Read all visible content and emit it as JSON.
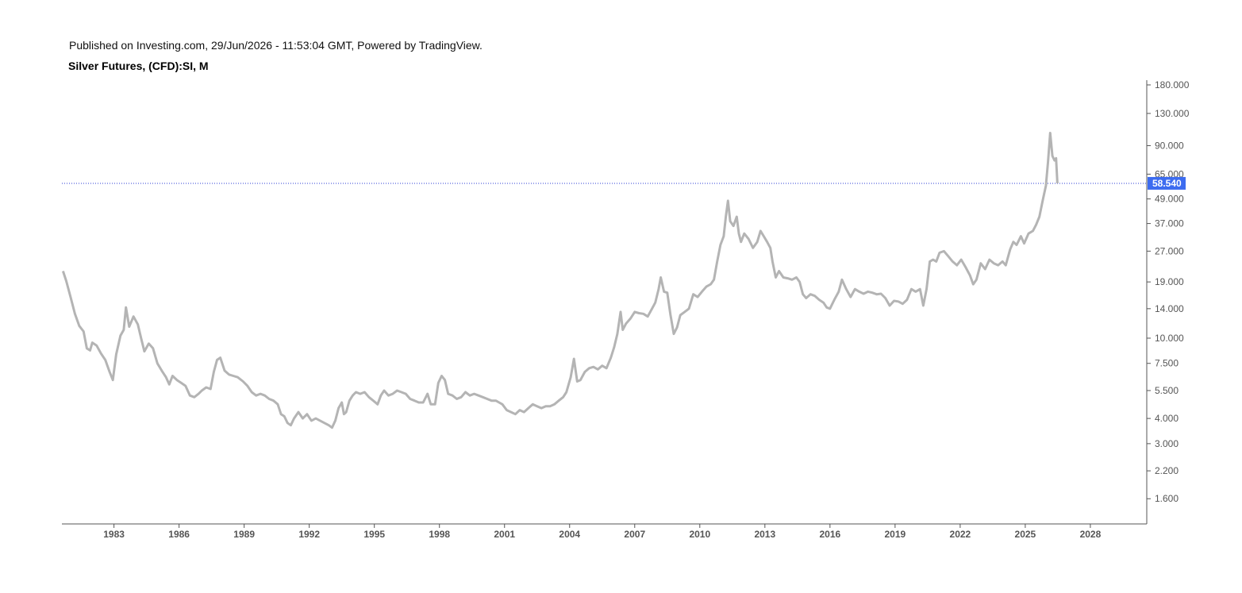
{
  "header": {
    "published": "Published on Investing.com, 29/Jun/2026 - 11:53:04 GMT, Powered by TradingView.",
    "title": "Silver Futures, (CFD):SI, M"
  },
  "colors": {
    "line": "#b4b4b4",
    "price_line": "#2a3bd6",
    "price_tag_bg": "#3d6cf0",
    "axis": "#555555"
  },
  "chart_data": {
    "type": "line",
    "title": "Silver Futures, (CFD):SI, M",
    "y_scale": "log",
    "ylim": [
      1.2,
      190
    ],
    "xlim": [
      1980.6,
      2030.6
    ],
    "y_ticks": [
      "1.600",
      "2.200",
      "3.000",
      "4.000",
      "5.500",
      "7.500",
      "10.000",
      "14.000",
      "19.000",
      "27.000",
      "37.000",
      "49.000",
      "65.000",
      "90.000",
      "130.000",
      "180.000"
    ],
    "x_ticks": [
      "1983",
      "1986",
      "1989",
      "1992",
      "1995",
      "1998",
      "2001",
      "2004",
      "2007",
      "2010",
      "2013",
      "2016",
      "2019",
      "2022",
      "2025",
      "2028"
    ],
    "last_price": 58.54,
    "last_price_label": "58.540",
    "grid": false,
    "series": [
      {
        "points": [
          [
            1980.65,
            21.5
          ],
          [
            1980.8,
            19.2
          ],
          [
            1981.0,
            16.0
          ],
          [
            1981.2,
            13.2
          ],
          [
            1981.4,
            11.5
          ],
          [
            1981.6,
            10.8
          ],
          [
            1981.75,
            8.9
          ],
          [
            1981.9,
            8.7
          ],
          [
            1982.0,
            9.5
          ],
          [
            1982.2,
            9.2
          ],
          [
            1982.4,
            8.4
          ],
          [
            1982.6,
            7.8
          ],
          [
            1982.8,
            6.8
          ],
          [
            1982.95,
            6.2
          ],
          [
            1983.1,
            8.3
          ],
          [
            1983.3,
            10.3
          ],
          [
            1983.45,
            11.0
          ],
          [
            1983.55,
            14.2
          ],
          [
            1983.7,
            11.4
          ],
          [
            1983.9,
            12.8
          ],
          [
            1984.1,
            11.7
          ],
          [
            1984.25,
            10.0
          ],
          [
            1984.4,
            8.6
          ],
          [
            1984.6,
            9.4
          ],
          [
            1984.8,
            8.9
          ],
          [
            1985.0,
            7.5
          ],
          [
            1985.2,
            6.9
          ],
          [
            1985.4,
            6.4
          ],
          [
            1985.55,
            5.9
          ],
          [
            1985.7,
            6.5
          ],
          [
            1985.9,
            6.2
          ],
          [
            1986.1,
            6.0
          ],
          [
            1986.3,
            5.8
          ],
          [
            1986.5,
            5.2
          ],
          [
            1986.7,
            5.1
          ],
          [
            1986.9,
            5.3
          ],
          [
            1987.05,
            5.5
          ],
          [
            1987.25,
            5.7
          ],
          [
            1987.45,
            5.6
          ],
          [
            1987.6,
            6.8
          ],
          [
            1987.75,
            7.8
          ],
          [
            1987.9,
            8.0
          ],
          [
            1988.1,
            6.9
          ],
          [
            1988.3,
            6.6
          ],
          [
            1988.5,
            6.5
          ],
          [
            1988.7,
            6.4
          ],
          [
            1988.95,
            6.1
          ],
          [
            1989.15,
            5.8
          ],
          [
            1989.35,
            5.4
          ],
          [
            1989.55,
            5.2
          ],
          [
            1989.75,
            5.3
          ],
          [
            1989.95,
            5.2
          ],
          [
            1990.15,
            5.0
          ],
          [
            1990.35,
            4.9
          ],
          [
            1990.55,
            4.7
          ],
          [
            1990.7,
            4.2
          ],
          [
            1990.85,
            4.1
          ],
          [
            1991.0,
            3.8
          ],
          [
            1991.15,
            3.7
          ],
          [
            1991.3,
            4.0
          ],
          [
            1991.5,
            4.3
          ],
          [
            1991.7,
            4.0
          ],
          [
            1991.9,
            4.2
          ],
          [
            1992.1,
            3.9
          ],
          [
            1992.3,
            4.0
          ],
          [
            1992.5,
            3.9
          ],
          [
            1992.7,
            3.8
          ],
          [
            1992.9,
            3.7
          ],
          [
            1993.05,
            3.6
          ],
          [
            1993.2,
            3.9
          ],
          [
            1993.35,
            4.5
          ],
          [
            1993.5,
            4.8
          ],
          [
            1993.6,
            4.2
          ],
          [
            1993.7,
            4.3
          ],
          [
            1993.85,
            4.9
          ],
          [
            1994.0,
            5.2
          ],
          [
            1994.15,
            5.4
          ],
          [
            1994.35,
            5.3
          ],
          [
            1994.55,
            5.4
          ],
          [
            1994.75,
            5.1
          ],
          [
            1994.95,
            4.9
          ],
          [
            1995.15,
            4.7
          ],
          [
            1995.3,
            5.2
          ],
          [
            1995.45,
            5.5
          ],
          [
            1995.65,
            5.2
          ],
          [
            1995.85,
            5.3
          ],
          [
            1996.05,
            5.5
          ],
          [
            1996.25,
            5.4
          ],
          [
            1996.45,
            5.3
          ],
          [
            1996.65,
            5.0
          ],
          [
            1996.85,
            4.9
          ],
          [
            1997.05,
            4.8
          ],
          [
            1997.25,
            4.8
          ],
          [
            1997.45,
            5.3
          ],
          [
            1997.6,
            4.7
          ],
          [
            1997.8,
            4.7
          ],
          [
            1997.95,
            6.0
          ],
          [
            1998.1,
            6.5
          ],
          [
            1998.25,
            6.2
          ],
          [
            1998.4,
            5.3
          ],
          [
            1998.6,
            5.2
          ],
          [
            1998.8,
            5.0
          ],
          [
            1999.0,
            5.1
          ],
          [
            1999.2,
            5.4
          ],
          [
            1999.4,
            5.2
          ],
          [
            1999.6,
            5.3
          ],
          [
            1999.8,
            5.2
          ],
          [
            2000.0,
            5.1
          ],
          [
            2000.2,
            5.0
          ],
          [
            2000.4,
            4.9
          ],
          [
            2000.6,
            4.9
          ],
          [
            2000.75,
            4.8
          ],
          [
            2000.9,
            4.7
          ],
          [
            2001.1,
            4.4
          ],
          [
            2001.3,
            4.3
          ],
          [
            2001.5,
            4.2
          ],
          [
            2001.7,
            4.4
          ],
          [
            2001.9,
            4.3
          ],
          [
            2002.1,
            4.5
          ],
          [
            2002.3,
            4.7
          ],
          [
            2002.5,
            4.6
          ],
          [
            2002.7,
            4.5
          ],
          [
            2002.9,
            4.6
          ],
          [
            2003.1,
            4.6
          ],
          [
            2003.3,
            4.7
          ],
          [
            2003.5,
            4.9
          ],
          [
            2003.7,
            5.1
          ],
          [
            2003.85,
            5.4
          ],
          [
            2004.05,
            6.4
          ],
          [
            2004.2,
            7.9
          ],
          [
            2004.35,
            6.1
          ],
          [
            2004.5,
            6.2
          ],
          [
            2004.7,
            6.8
          ],
          [
            2004.9,
            7.1
          ],
          [
            2005.1,
            7.2
          ],
          [
            2005.3,
            7.0
          ],
          [
            2005.5,
            7.3
          ],
          [
            2005.7,
            7.1
          ],
          [
            2005.9,
            8.0
          ],
          [
            2006.05,
            9.0
          ],
          [
            2006.2,
            10.5
          ],
          [
            2006.35,
            13.5
          ],
          [
            2006.45,
            11.0
          ],
          [
            2006.6,
            11.8
          ],
          [
            2006.8,
            12.5
          ],
          [
            2007.0,
            13.5
          ],
          [
            2007.2,
            13.3
          ],
          [
            2007.4,
            13.2
          ],
          [
            2007.6,
            12.8
          ],
          [
            2007.8,
            14.0
          ],
          [
            2007.95,
            15.0
          ],
          [
            2008.1,
            17.5
          ],
          [
            2008.2,
            20.0
          ],
          [
            2008.35,
            17.0
          ],
          [
            2008.5,
            16.8
          ],
          [
            2008.65,
            13.0
          ],
          [
            2008.8,
            10.5
          ],
          [
            2008.95,
            11.3
          ],
          [
            2009.1,
            13.0
          ],
          [
            2009.3,
            13.5
          ],
          [
            2009.5,
            14.0
          ],
          [
            2009.7,
            16.5
          ],
          [
            2009.9,
            16.0
          ],
          [
            2010.1,
            17.0
          ],
          [
            2010.3,
            18.0
          ],
          [
            2010.5,
            18.5
          ],
          [
            2010.65,
            19.5
          ],
          [
            2010.8,
            24.0
          ],
          [
            2010.95,
            29.0
          ],
          [
            2011.1,
            32.0
          ],
          [
            2011.2,
            40.0
          ],
          [
            2011.3,
            48.0
          ],
          [
            2011.4,
            38.0
          ],
          [
            2011.55,
            36.0
          ],
          [
            2011.7,
            40.0
          ],
          [
            2011.8,
            33.0
          ],
          [
            2011.9,
            30.0
          ],
          [
            2012.05,
            33.0
          ],
          [
            2012.25,
            31.0
          ],
          [
            2012.45,
            28.0
          ],
          [
            2012.65,
            30.0
          ],
          [
            2012.8,
            34.0
          ],
          [
            2012.95,
            32.0
          ],
          [
            2013.1,
            30.0
          ],
          [
            2013.25,
            28.0
          ],
          [
            2013.35,
            24.0
          ],
          [
            2013.5,
            20.0
          ],
          [
            2013.65,
            21.5
          ],
          [
            2013.85,
            20.0
          ],
          [
            2014.05,
            19.8
          ],
          [
            2014.25,
            19.5
          ],
          [
            2014.45,
            20.0
          ],
          [
            2014.6,
            19.0
          ],
          [
            2014.75,
            16.5
          ],
          [
            2014.9,
            15.8
          ],
          [
            2015.1,
            16.5
          ],
          [
            2015.3,
            16.2
          ],
          [
            2015.5,
            15.5
          ],
          [
            2015.7,
            15.0
          ],
          [
            2015.85,
            14.2
          ],
          [
            2016.0,
            14.0
          ],
          [
            2016.2,
            15.5
          ],
          [
            2016.4,
            17.0
          ],
          [
            2016.55,
            19.5
          ],
          [
            2016.75,
            17.5
          ],
          [
            2016.95,
            16.0
          ],
          [
            2017.15,
            17.5
          ],
          [
            2017.35,
            17.0
          ],
          [
            2017.55,
            16.6
          ],
          [
            2017.75,
            17.0
          ],
          [
            2017.95,
            16.8
          ],
          [
            2018.15,
            16.5
          ],
          [
            2018.35,
            16.6
          ],
          [
            2018.55,
            15.8
          ],
          [
            2018.75,
            14.5
          ],
          [
            2018.95,
            15.3
          ],
          [
            2019.15,
            15.2
          ],
          [
            2019.35,
            14.8
          ],
          [
            2019.55,
            15.5
          ],
          [
            2019.75,
            17.5
          ],
          [
            2019.95,
            17.0
          ],
          [
            2020.15,
            17.5
          ],
          [
            2020.3,
            14.5
          ],
          [
            2020.45,
            17.5
          ],
          [
            2020.6,
            24.0
          ],
          [
            2020.75,
            24.5
          ],
          [
            2020.9,
            24.0
          ],
          [
            2021.05,
            26.5
          ],
          [
            2021.25,
            27.0
          ],
          [
            2021.45,
            25.5
          ],
          [
            2021.65,
            24.0
          ],
          [
            2021.85,
            23.0
          ],
          [
            2022.05,
            24.5
          ],
          [
            2022.25,
            22.5
          ],
          [
            2022.45,
            20.5
          ],
          [
            2022.6,
            18.5
          ],
          [
            2022.75,
            19.5
          ],
          [
            2022.95,
            23.5
          ],
          [
            2023.15,
            22.0
          ],
          [
            2023.35,
            24.5
          ],
          [
            2023.55,
            23.5
          ],
          [
            2023.75,
            23.0
          ],
          [
            2023.95,
            24.0
          ],
          [
            2024.1,
            23.0
          ],
          [
            2024.3,
            27.5
          ],
          [
            2024.45,
            30.0
          ],
          [
            2024.6,
            29.0
          ],
          [
            2024.8,
            32.0
          ],
          [
            2024.95,
            29.5
          ],
          [
            2025.15,
            33.0
          ],
          [
            2025.35,
            34.0
          ],
          [
            2025.5,
            36.5
          ],
          [
            2025.65,
            40.0
          ],
          [
            2025.8,
            48.0
          ],
          [
            2025.95,
            57.0
          ],
          [
            2026.05,
            75.0
          ],
          [
            2026.15,
            104.0
          ],
          [
            2026.25,
            80.0
          ],
          [
            2026.35,
            76.0
          ],
          [
            2026.42,
            78.0
          ],
          [
            2026.48,
            58.54
          ]
        ]
      }
    ]
  }
}
